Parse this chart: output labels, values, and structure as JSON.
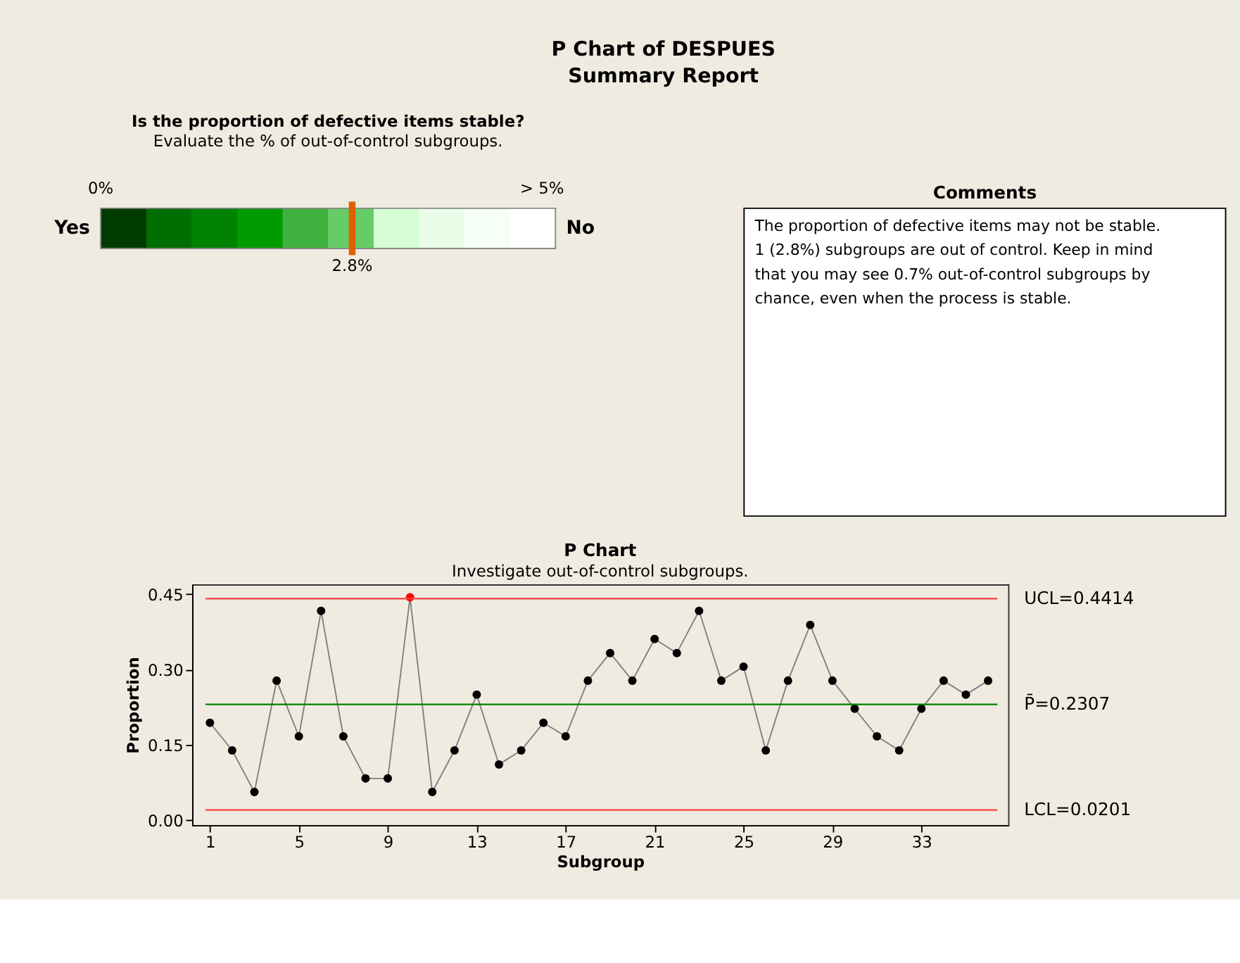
{
  "chart_data": [
    {
      "type": "other",
      "title": "P Chart of DESPUES",
      "subtitle": "Summary Report"
    },
    {
      "type": "other",
      "title": "Is the proportion of defective items stable?",
      "subtitle": "Evaluate the % of out-of-control subgroups.",
      "colors": [
        "#003c00",
        "#006e00",
        "#008200",
        "#009b00",
        "#3fb23f",
        "#66cc66",
        "#d6ffd6",
        "#e9fde9",
        "#f5fff5",
        "#ffffff"
      ],
      "annotations": [
        "Yes",
        "No",
        "0%",
        "> 5%",
        "2.8%"
      ]
    },
    {
      "type": "other",
      "title": "Comments",
      "annotations": [
        "The proportion of defective items may not be stable. 1 (2.8%) subgroups are out of control. Keep in mind that you may see 0.7% out-of-control subgroups by chance, even when the process is stable."
      ]
    },
    {
      "type": "line",
      "title": "P Chart",
      "subtitle": "Investigate out-of-control subgroups.",
      "xlabel": "Subgroup",
      "ylabel": "Proportion",
      "x": [
        1,
        2,
        3,
        4,
        5,
        6,
        7,
        8,
        9,
        10,
        11,
        12,
        13,
        14,
        15,
        16,
        17,
        18,
        19,
        20,
        21,
        22,
        23,
        24,
        25,
        26,
        27,
        28,
        29,
        30,
        31,
        32,
        33,
        34,
        35,
        36
      ],
      "series": [
        {
          "color": "#808080",
          "marker": "circle",
          "colors": [
            "#000000",
            "#000000",
            "#000000",
            "#000000",
            "#000000",
            "#000000",
            "#000000",
            "#000000",
            "#000000",
            "#ff0000",
            "#000000",
            "#000000",
            "#000000",
            "#000000",
            "#000000",
            "#000000",
            "#000000",
            "#000000",
            "#000000",
            "#000000",
            "#000000",
            "#000000",
            "#000000",
            "#000000",
            "#000000",
            "#000000",
            "#000000",
            "#000000",
            "#000000",
            "#000000",
            "#000000",
            "#000000",
            "#000000",
            "#000000",
            "#000000",
            "#000000"
          ],
          "values": [
            0.194,
            0.139,
            0.056,
            0.278,
            0.167,
            0.417,
            0.167,
            0.083,
            0.083,
            0.444,
            0.056,
            0.139,
            0.25,
            0.111,
            0.139,
            0.194,
            0.167,
            0.278,
            0.333,
            0.278,
            0.361,
            0.333,
            0.417,
            0.278,
            0.306,
            0.139,
            0.278,
            0.389,
            0.278,
            0.222,
            0.167,
            0.139,
            0.222,
            0.278,
            0.25,
            0.278
          ]
        }
      ],
      "xlim": [
        0.2,
        36.9
      ],
      "xticks": [
        1,
        5,
        9,
        13,
        17,
        21,
        25,
        29,
        33
      ],
      "ylim": [
        -0.01,
        0.47
      ],
      "yticks": [
        {
          "value": 0,
          "label": "0.00"
        },
        {
          "value": 0.15,
          "label": "0.15"
        },
        {
          "value": 0.3,
          "label": "0.30"
        },
        {
          "value": 0.45,
          "label": "0.45"
        }
      ],
      "ref_lines": [
        {
          "axis": "y",
          "value": 0.4414,
          "label": "UCL=0.4414",
          "color": "#ff4040"
        },
        {
          "axis": "y",
          "value": 0.2307,
          "label": "P̄=0.2307",
          "color": "#008000"
        },
        {
          "axis": "y",
          "value": 0.0201,
          "label": "LCL=0.0201",
          "color": "#ff4040"
        }
      ],
      "grid": false
    }
  ]
}
